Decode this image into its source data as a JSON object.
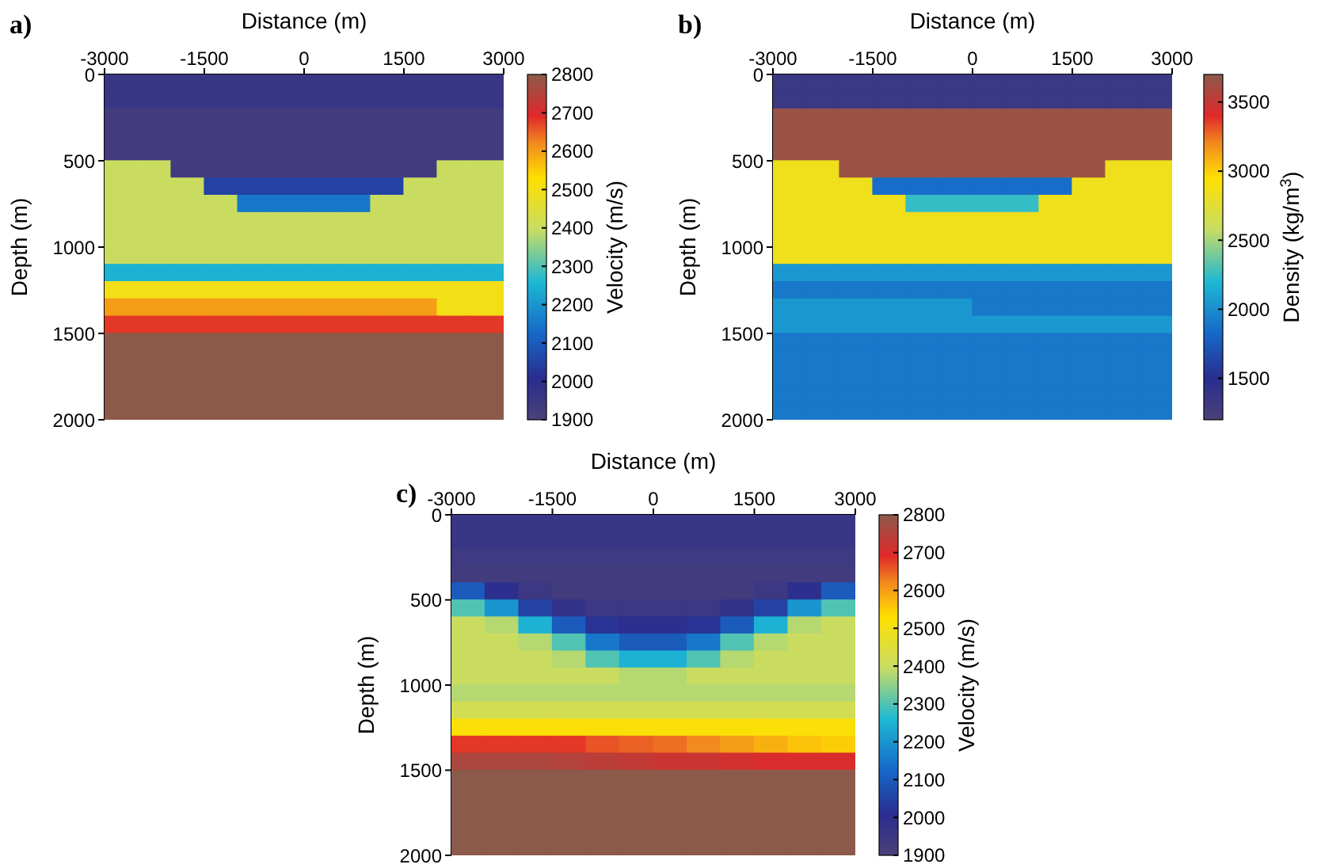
{
  "chart_data": [
    {
      "type": "heatmap",
      "title": "a)",
      "xlabel": "Distance (m)",
      "ylabel": "Depth (m)",
      "clabel": "Velocity (m/s)",
      "xlim": [
        -3000,
        3000
      ],
      "xticks": [
        -3000,
        -1500,
        0,
        1500,
        3000
      ],
      "ylim": [
        2000,
        0
      ],
      "yticks": [
        0,
        500,
        1000,
        1500,
        2000
      ],
      "clim": [
        1900,
        2800
      ],
      "cticks": [
        1900,
        2000,
        2100,
        2200,
        2300,
        2400,
        2500,
        2600,
        2700,
        2800
      ],
      "cells": [
        [
          1960,
          1960,
          1960,
          1960,
          1960,
          1960,
          1960,
          1960,
          1960,
          1960,
          1960,
          1960
        ],
        [
          1960,
          1960,
          1960,
          1960,
          1960,
          1960,
          1960,
          1960,
          1960,
          1960,
          1960,
          1960
        ],
        [
          1930,
          1930,
          1930,
          1930,
          1930,
          1930,
          1930,
          1930,
          1930,
          1930,
          1930,
          1930
        ],
        [
          1930,
          1930,
          1930,
          1930,
          1930,
          1930,
          1930,
          1930,
          1930,
          1930,
          1930,
          1930
        ],
        [
          1930,
          1930,
          1930,
          1930,
          1930,
          1930,
          1930,
          1930,
          1930,
          1930,
          1930,
          1930
        ],
        [
          2400,
          2400,
          1930,
          1930,
          1930,
          1930,
          1930,
          1930,
          1930,
          1930,
          2400,
          2400
        ],
        [
          2400,
          2400,
          2400,
          2050,
          2050,
          2050,
          2050,
          2050,
          2050,
          2400,
          2400,
          2400
        ],
        [
          2400,
          2400,
          2400,
          2400,
          2150,
          2150,
          2150,
          2150,
          2400,
          2400,
          2400,
          2400
        ],
        [
          2400,
          2400,
          2400,
          2400,
          2400,
          2400,
          2400,
          2400,
          2400,
          2400,
          2400,
          2400
        ],
        [
          2400,
          2400,
          2400,
          2400,
          2400,
          2400,
          2400,
          2400,
          2400,
          2400,
          2400,
          2400
        ],
        [
          2400,
          2400,
          2400,
          2400,
          2400,
          2400,
          2400,
          2400,
          2400,
          2400,
          2400,
          2400
        ],
        [
          2250,
          2250,
          2250,
          2250,
          2250,
          2250,
          2250,
          2250,
          2250,
          2250,
          2250,
          2250
        ],
        [
          2500,
          2500,
          2500,
          2500,
          2500,
          2500,
          2500,
          2500,
          2500,
          2500,
          2500,
          2500
        ],
        [
          2600,
          2600,
          2600,
          2600,
          2600,
          2600,
          2600,
          2600,
          2600,
          2600,
          2500,
          2500
        ],
        [
          2680,
          2680,
          2680,
          2680,
          2680,
          2680,
          2680,
          2680,
          2680,
          2680,
          2680,
          2680
        ],
        [
          2800,
          2800,
          2800,
          2800,
          2800,
          2800,
          2800,
          2800,
          2800,
          2800,
          2800,
          2800
        ],
        [
          2800,
          2800,
          2800,
          2800,
          2800,
          2800,
          2800,
          2800,
          2800,
          2800,
          2800,
          2800
        ],
        [
          2800,
          2800,
          2800,
          2800,
          2800,
          2800,
          2800,
          2800,
          2800,
          2800,
          2800,
          2800
        ],
        [
          2800,
          2800,
          2800,
          2800,
          2800,
          2800,
          2800,
          2800,
          2800,
          2800,
          2800,
          2800
        ],
        [
          2800,
          2800,
          2800,
          2800,
          2800,
          2800,
          2800,
          2800,
          2800,
          2800,
          2800,
          2800
        ]
      ]
    },
    {
      "type": "heatmap",
      "title": "b)",
      "xlabel": "Distance (m)",
      "ylabel": "Depth (m)",
      "clabel": "Density (kg/m$^{3}$)",
      "xlim": [
        -3000,
        3000
      ],
      "xticks": [
        -3000,
        -1500,
        0,
        1500,
        3000
      ],
      "ylim": [
        2000,
        0
      ],
      "yticks": [
        0,
        500,
        1000,
        1500,
        2000
      ],
      "clim": [
        1200,
        3700
      ],
      "cticks": [
        1500,
        2000,
        2500,
        3000,
        3500
      ],
      "cells": [
        [
          1350,
          1350,
          1350,
          1350,
          1350,
          1350,
          1350,
          1350,
          1350,
          1350,
          1350,
          1350
        ],
        [
          1350,
          1350,
          1350,
          1350,
          1350,
          1350,
          1350,
          1350,
          1350,
          1350,
          1350,
          1350
        ],
        [
          3650,
          3650,
          3650,
          3650,
          3650,
          3650,
          3650,
          3650,
          3650,
          3650,
          3650,
          3650
        ],
        [
          3650,
          3650,
          3650,
          3650,
          3650,
          3650,
          3650,
          3650,
          3650,
          3650,
          3650,
          3650
        ],
        [
          3650,
          3650,
          3650,
          3650,
          3650,
          3650,
          3650,
          3650,
          3650,
          3650,
          3650,
          3650
        ],
        [
          2850,
          2850,
          3650,
          3650,
          3650,
          3650,
          3650,
          3650,
          3650,
          3650,
          2850,
          2850
        ],
        [
          2850,
          2850,
          2850,
          1850,
          1850,
          1850,
          1850,
          1850,
          1850,
          2850,
          2850,
          2850
        ],
        [
          2850,
          2850,
          2850,
          2850,
          2250,
          2250,
          2250,
          2250,
          2850,
          2850,
          2850,
          2850
        ],
        [
          2850,
          2850,
          2850,
          2850,
          2850,
          2850,
          2850,
          2850,
          2850,
          2850,
          2850,
          2850
        ],
        [
          2850,
          2850,
          2850,
          2850,
          2850,
          2850,
          2850,
          2850,
          2850,
          2850,
          2850,
          2850
        ],
        [
          2850,
          2850,
          2850,
          2850,
          2850,
          2850,
          2850,
          2850,
          2850,
          2850,
          2850,
          2850
        ],
        [
          2050,
          2050,
          2050,
          2050,
          2050,
          2050,
          2050,
          2050,
          2050,
          2050,
          2050,
          2050
        ],
        [
          1900,
          1900,
          1900,
          1900,
          1900,
          1900,
          1900,
          1900,
          1900,
          1900,
          1900,
          1900
        ],
        [
          2050,
          2050,
          2050,
          2050,
          2050,
          2050,
          1900,
          1900,
          1900,
          1900,
          1900,
          1900
        ],
        [
          2050,
          2050,
          2050,
          2050,
          2050,
          2050,
          2050,
          2050,
          2050,
          2050,
          2050,
          2050
        ],
        [
          1900,
          1900,
          1900,
          1900,
          1900,
          1900,
          1900,
          1900,
          1900,
          1900,
          1900,
          1900
        ],
        [
          1900,
          1900,
          1900,
          1900,
          1900,
          1900,
          1900,
          1900,
          1900,
          1900,
          1900,
          1900
        ],
        [
          1900,
          1900,
          1900,
          1900,
          1900,
          1900,
          1900,
          1900,
          1900,
          1900,
          1900,
          1900
        ],
        [
          1900,
          1900,
          1900,
          1900,
          1900,
          1900,
          1900,
          1900,
          1900,
          1900,
          1900,
          1900
        ],
        [
          1900,
          1900,
          1900,
          1900,
          1900,
          1900,
          1900,
          1900,
          1900,
          1900,
          1900,
          1900
        ]
      ]
    },
    {
      "type": "heatmap",
      "title": "c)",
      "xlabel": "Distance (m)",
      "ylabel": "Depth (m)",
      "clabel": "Velocity (m/s)",
      "xlim": [
        -3000,
        3000
      ],
      "xticks": [
        -3000,
        -1500,
        0,
        1500,
        3000
      ],
      "ylim": [
        2000,
        0
      ],
      "yticks": [
        0,
        500,
        1000,
        1500,
        2000
      ],
      "clim": [
        1900,
        2800
      ],
      "cticks": [
        1900,
        2000,
        2100,
        2200,
        2300,
        2400,
        2500,
        2600,
        2700,
        2800
      ],
      "cells": [
        [
          1960,
          1960,
          1960,
          1960,
          1960,
          1960,
          1960,
          1960,
          1960,
          1960,
          1960,
          1960
        ],
        [
          1960,
          1960,
          1960,
          1960,
          1960,
          1960,
          1960,
          1960,
          1960,
          1960,
          1960,
          1960
        ],
        [
          1940,
          1940,
          1940,
          1940,
          1940,
          1940,
          1940,
          1940,
          1940,
          1940,
          1940,
          1940
        ],
        [
          1930,
          1930,
          1930,
          1930,
          1930,
          1930,
          1930,
          1930,
          1930,
          1930,
          1930,
          1930
        ],
        [
          2100,
          2000,
          1950,
          1930,
          1930,
          1930,
          1930,
          1930,
          1930,
          1950,
          2000,
          2100
        ],
        [
          2300,
          2200,
          2050,
          1980,
          1950,
          1950,
          1950,
          1950,
          1980,
          2050,
          2200,
          2300
        ],
        [
          2400,
          2380,
          2250,
          2100,
          2020,
          2000,
          2000,
          2020,
          2100,
          2250,
          2380,
          2400
        ],
        [
          2400,
          2400,
          2380,
          2300,
          2150,
          2100,
          2100,
          2150,
          2300,
          2380,
          2400,
          2400
        ],
        [
          2400,
          2400,
          2400,
          2380,
          2300,
          2250,
          2250,
          2300,
          2380,
          2400,
          2400,
          2400
        ],
        [
          2400,
          2400,
          2400,
          2400,
          2400,
          2380,
          2380,
          2400,
          2400,
          2400,
          2400,
          2400
        ],
        [
          2380,
          2380,
          2380,
          2380,
          2380,
          2380,
          2380,
          2380,
          2380,
          2380,
          2380,
          2380
        ],
        [
          2420,
          2420,
          2420,
          2420,
          2420,
          2420,
          2420,
          2420,
          2420,
          2420,
          2420,
          2420
        ],
        [
          2520,
          2520,
          2520,
          2520,
          2520,
          2520,
          2520,
          2520,
          2520,
          2520,
          2520,
          2520
        ],
        [
          2680,
          2680,
          2680,
          2680,
          2660,
          2650,
          2640,
          2620,
          2600,
          2580,
          2560,
          2550
        ],
        [
          2760,
          2760,
          2760,
          2750,
          2740,
          2730,
          2720,
          2720,
          2710,
          2700,
          2700,
          2700
        ],
        [
          2800,
          2800,
          2800,
          2800,
          2800,
          2800,
          2800,
          2800,
          2800,
          2800,
          2800,
          2800
        ],
        [
          2800,
          2800,
          2800,
          2800,
          2800,
          2800,
          2800,
          2800,
          2800,
          2800,
          2800,
          2800
        ],
        [
          2800,
          2800,
          2800,
          2800,
          2800,
          2800,
          2800,
          2800,
          2800,
          2800,
          2800,
          2800
        ],
        [
          2800,
          2800,
          2800,
          2800,
          2800,
          2800,
          2800,
          2800,
          2800,
          2800,
          2800,
          2800
        ],
        [
          2800,
          2800,
          2800,
          2800,
          2800,
          2800,
          2800,
          2800,
          2800,
          2800,
          2800,
          2800
        ]
      ]
    }
  ]
}
